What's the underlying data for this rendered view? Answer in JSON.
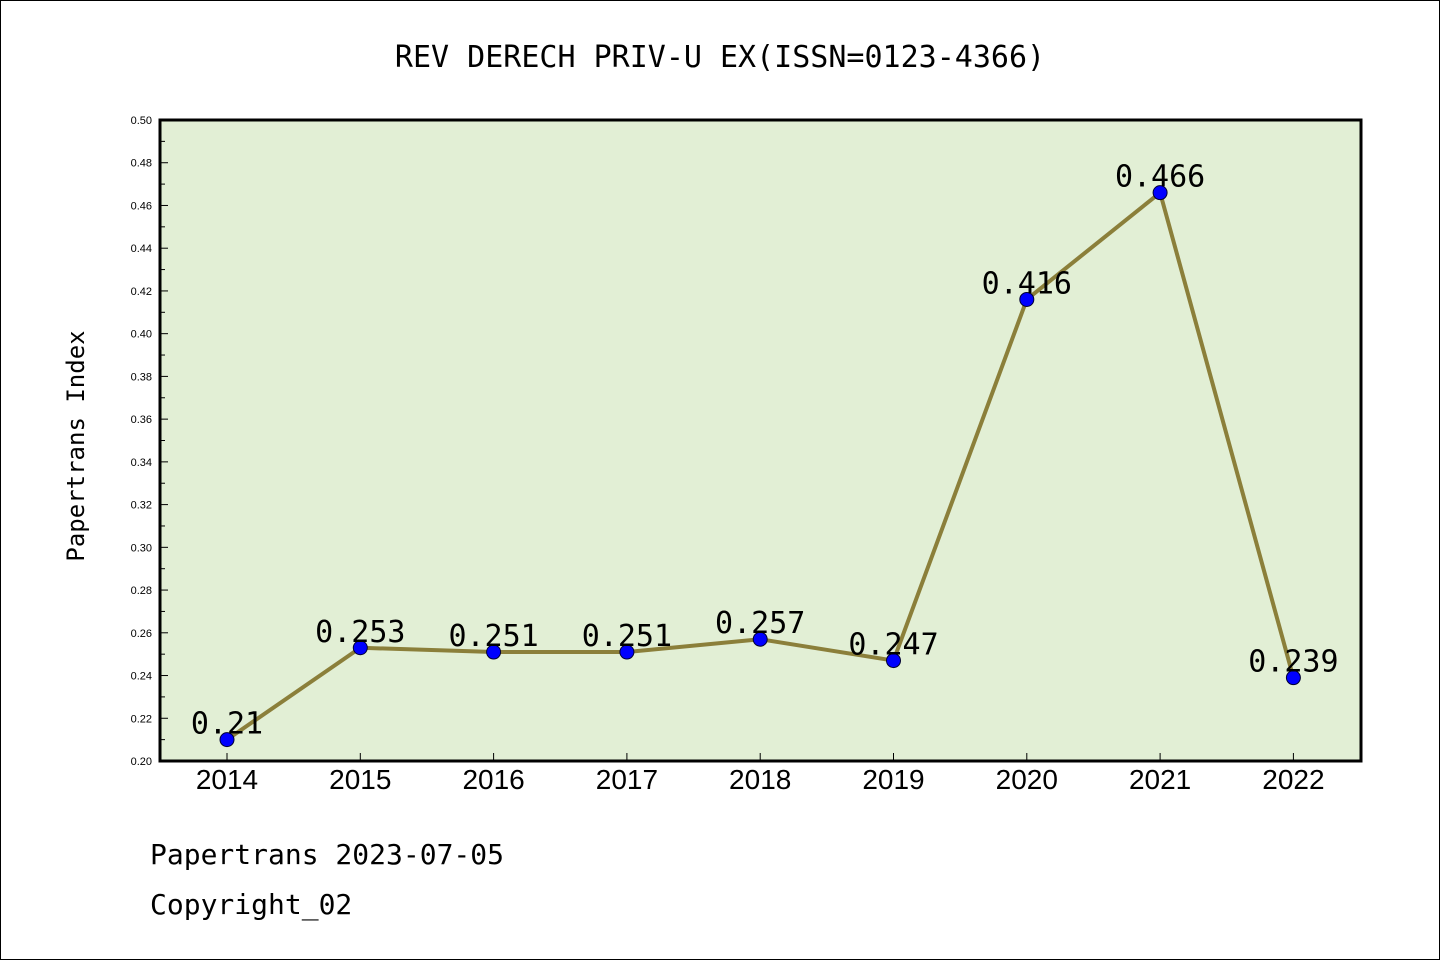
{
  "chart_data": {
    "type": "line",
    "title": "REV DERECH PRIV-U EX(ISSN=0123-4366)",
    "ylabel": "Papertrans Index",
    "xlabel": "",
    "categories": [
      "2014",
      "2015",
      "2016",
      "2017",
      "2018",
      "2019",
      "2020",
      "2021",
      "2022"
    ],
    "values": [
      0.21,
      0.253,
      0.251,
      0.251,
      0.257,
      0.247,
      0.416,
      0.466,
      0.239
    ],
    "data_labels": [
      "0.21",
      "0.253",
      "0.251",
      "0.251",
      "0.257",
      "0.247",
      "0.416",
      "0.466",
      "0.239"
    ],
    "ylim": [
      0.2,
      0.5
    ],
    "yticks": [
      "0.20",
      "0.22",
      "0.24",
      "0.26",
      "0.28",
      "0.30",
      "0.32",
      "0.34",
      "0.36",
      "0.38",
      "0.40",
      "0.42",
      "0.44",
      "0.46",
      "0.48",
      "0.50"
    ],
    "grid": false,
    "legend": "none",
    "colors": {
      "plot_background": "#e2efd5",
      "line": "#8b7f3a",
      "marker": "#0000ff"
    }
  },
  "footer": {
    "line1": "Papertrans 2023-07-05",
    "line2": "Copyright_02"
  }
}
